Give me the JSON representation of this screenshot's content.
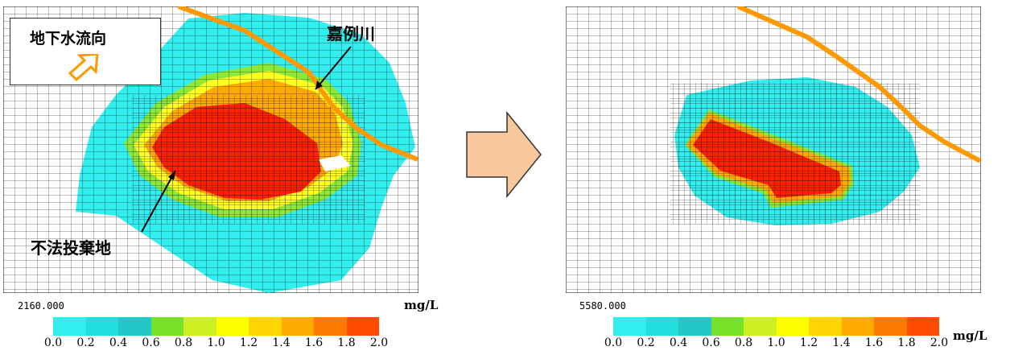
{
  "left_panel": {
    "legend_title": "地下水流向",
    "river_label": "嘉例川",
    "site_label": "不法投棄地",
    "time_label": "2160.000",
    "unit": "mg/L"
  },
  "right_panel": {
    "time_label": "5580.000",
    "unit": "mg/L"
  },
  "scale": {
    "ticks": [
      "0.0",
      "0.2",
      "0.4",
      "0.6",
      "0.8",
      "1.0",
      "1.2",
      "1.4",
      "1.6",
      "1.8",
      "2.0"
    ],
    "colors": [
      "#33eeee",
      "#22dddd",
      "#22c8c8",
      "#77e028",
      "#ccf021",
      "#ffff00",
      "#ffd400",
      "#ffaa00",
      "#ff7a00",
      "#ff4a00",
      "#ff0000"
    ]
  },
  "colors": {
    "river": "#ff9900",
    "plume_outer": "#33eeee",
    "plume_core": "#ff2200",
    "transition_arrow": "#f9c79c"
  }
}
